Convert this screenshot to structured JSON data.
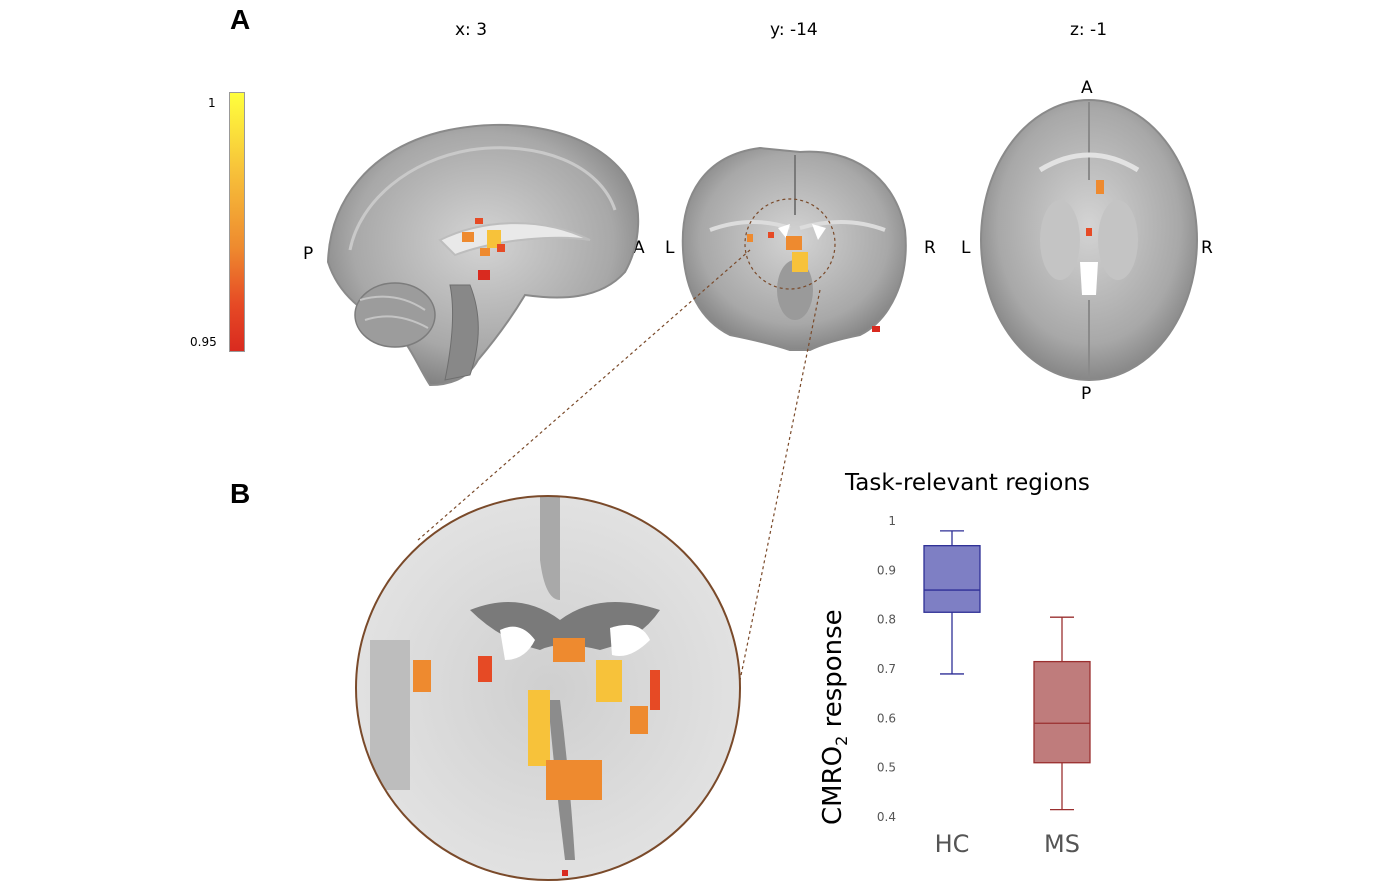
{
  "panels": {
    "a_label": "A",
    "b_label": "B"
  },
  "slices": {
    "sagittal": {
      "coord": "x: 3",
      "left": "P",
      "right": "A"
    },
    "coronal": {
      "coord": "y: -14",
      "left": "L",
      "right": "R"
    },
    "axial": {
      "coord": "z: -1",
      "top": "A",
      "bottom": "P",
      "left": "L",
      "right": "R"
    }
  },
  "colorbar": {
    "max_label": "1",
    "min_label": "0.95",
    "colors": [
      "#ffff3c",
      "#f7c23a",
      "#ee8a2f",
      "#e64a25",
      "#d92a1f"
    ]
  },
  "boxplot": {
    "title": "Task-relevant regions",
    "ylabel_main": "CMRO",
    "ylabel_sub": "2",
    "ylabel_tail": " response"
  },
  "chart_data": {
    "type": "box",
    "title": "Task-relevant regions",
    "ylabel": "CMRO2 response",
    "ylim": [
      0.38,
      1.0
    ],
    "yticks": [
      0.4,
      0.5,
      0.6,
      0.7,
      0.8,
      0.9,
      1
    ],
    "ytick_labels": [
      "0.4",
      "0.5",
      "0.6",
      "0.7",
      "0.8",
      "0.9",
      "1"
    ],
    "categories": [
      "HC",
      "MS"
    ],
    "boxes": [
      {
        "category": "HC",
        "whisker_low": 0.69,
        "q1": 0.815,
        "median": 0.86,
        "q3": 0.95,
        "whisker_high": 0.98,
        "fill": "#7e7fc4",
        "stroke": "#2e2f96"
      },
      {
        "category": "MS",
        "whisker_low": 0.415,
        "q1": 0.51,
        "median": 0.59,
        "q3": 0.715,
        "whisker_high": 0.805,
        "fill": "#bf7c7c",
        "stroke": "#9a2f2f"
      }
    ]
  }
}
